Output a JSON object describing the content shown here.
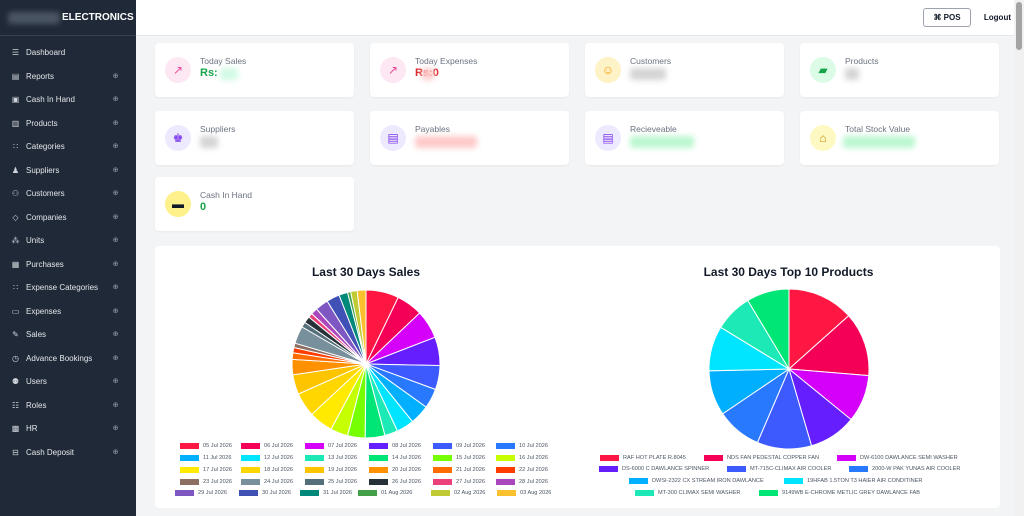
{
  "sidebar": {
    "brand": "ELECTRONICS",
    "items": [
      {
        "label": "Dashboard",
        "icon": "grid-icon",
        "chevron": false
      },
      {
        "label": "Reports",
        "icon": "chart-icon",
        "chevron": true
      },
      {
        "label": "Cash In Hand",
        "icon": "cash-icon",
        "chevron": true
      },
      {
        "label": "Products",
        "icon": "box-icon",
        "chevron": true
      },
      {
        "label": "Categories",
        "icon": "categories-icon",
        "chevron": true
      },
      {
        "label": "Suppliers",
        "icon": "supplier-icon",
        "chevron": true
      },
      {
        "label": "Customers",
        "icon": "users-icon",
        "chevron": true
      },
      {
        "label": "Companies",
        "icon": "tag-icon",
        "chevron": true
      },
      {
        "label": "Units",
        "icon": "units-icon",
        "chevron": true
      },
      {
        "label": "Purchases",
        "icon": "purchase-icon",
        "chevron": true
      },
      {
        "label": "Expense Categories",
        "icon": "categories-icon",
        "chevron": true
      },
      {
        "label": "Expenses",
        "icon": "expense-icon",
        "chevron": true
      },
      {
        "label": "Sales",
        "icon": "sales-icon",
        "chevron": true
      },
      {
        "label": "Advance Bookings",
        "icon": "clock-icon",
        "chevron": true
      },
      {
        "label": "Users",
        "icon": "user-group-icon",
        "chevron": true
      },
      {
        "label": "Roles",
        "icon": "roles-icon",
        "chevron": true
      },
      {
        "label": "HR",
        "icon": "hr-icon",
        "chevron": true
      },
      {
        "label": "Cash Deposit",
        "icon": "deposit-icon",
        "chevron": true
      }
    ]
  },
  "topbar": {
    "pos_label": "⌘ POS",
    "logout_label": "Logout"
  },
  "cards": [
    {
      "title": "Today Sales",
      "value": "Rs:",
      "value_color": "#16a34a",
      "icon": "trend-up-icon",
      "circle_color": "#fce7f3",
      "icon_color": "#ec4899"
    },
    {
      "title": "Today Expenses",
      "value": "Rs:0",
      "value_color": "#dc2626",
      "icon": "trend-up-icon",
      "circle_color": "#fce7f3",
      "icon_color": "#ec4899"
    },
    {
      "title": "Customers",
      "value": "",
      "value_color": "#111827",
      "icon": "customer-icon",
      "circle_color": "#fef3c7",
      "icon_color": "#f59e0b"
    },
    {
      "title": "Products",
      "value": "",
      "value_color": "#111827",
      "icon": "folder-icon",
      "circle_color": "#dcfce7",
      "icon_color": "#16a34a"
    },
    {
      "title": "Suppliers",
      "value": "",
      "value_color": "#111827",
      "icon": "supplier-avatar-icon",
      "circle_color": "#ede9fe",
      "icon_color": "#7c3aed"
    },
    {
      "title": "Payables",
      "value": "",
      "value_color": "#dc2626",
      "icon": "money-icon",
      "circle_color": "#ede9fe",
      "icon_color": "#7c3aed"
    },
    {
      "title": "Recieveable",
      "value": "",
      "value_color": "#16a34a",
      "icon": "money-icon",
      "circle_color": "#ede9fe",
      "icon_color": "#7c3aed"
    },
    {
      "title": "Total Stock Value",
      "value": "",
      "value_color": "#16a34a",
      "icon": "warehouse-icon",
      "circle_color": "#fef9c3",
      "icon_color": "#ca8a04"
    },
    {
      "title": "Cash In Hand",
      "value": "0",
      "value_color": "#16a34a",
      "icon": "cash-hand-icon",
      "circle_color": "#fef08a",
      "icon_color": "#111827"
    }
  ],
  "chart_data": [
    {
      "type": "pie",
      "title": "Last 30 Days Sales",
      "categories": [
        "05 Jul 2026",
        "06 Jul 2026",
        "07 Jul 2026",
        "08 Jul 2026",
        "09 Jul 2026",
        "10 Jul 2026",
        "11 Jul 2026",
        "12 Jul 2026",
        "13 Jul 2026",
        "14 Jul 2026",
        "15 Jul 2026",
        "16 Jul 2026",
        "17 Jul 2026",
        "18 Jul 2026",
        "19 Jul 2026",
        "20 Jul 2026",
        "21 Jul 2026",
        "22 Jul 2026",
        "23 Jul 2026",
        "24 Jul 2026",
        "25 Jul 2026",
        "26 Jul 2026",
        "27 Jul 2026",
        "28 Jul 2026",
        "29 Jul 2026",
        "30 Jul 2026",
        "31 Jul 2026",
        "01 Aug 2026",
        "02 Aug 2026",
        "03 Aug 2026"
      ],
      "values": [
        7.5,
        6,
        6.5,
        6.5,
        5.5,
        4.5,
        4.5,
        4,
        3,
        4.5,
        4,
        4,
        5.5,
        5.5,
        4.5,
        3.5,
        1.5,
        1.2,
        1,
        4,
        1.2,
        1.5,
        1,
        1.5,
        3,
        3,
        2,
        0.7,
        1.5,
        2
      ],
      "colors": [
        "#ff1744",
        "#f50057",
        "#d500f9",
        "#651fff",
        "#3d5afe",
        "#2979ff",
        "#00b0ff",
        "#00e5ff",
        "#1de9b6",
        "#00e676",
        "#76ff03",
        "#c6ff00",
        "#ffea00",
        "#ffd600",
        "#ffc400",
        "#ff9100",
        "#ff6d00",
        "#ff3d00",
        "#8d6e63",
        "#78909c",
        "#546e7a",
        "#263238",
        "#ec407a",
        "#ab47bc",
        "#7e57c2",
        "#3f51b5",
        "#00897b",
        "#43a047",
        "#c0ca33",
        "#fbc02d"
      ],
      "legend_placement": "bottom"
    },
    {
      "type": "pie",
      "title": "Last 30 Days Top 10 Products",
      "categories": [
        "RAF HOT PLATE R.8045",
        "NDS FAN PEDESTAL COPPER FAN",
        "DW-6100 DAWLANCE SEMI WASHER",
        "DS-6000 C DAWLANCE SPINNER",
        "MT-715C-CLIMAX AIR COOLER",
        "2000-W PAK YUNAS AIR COOLER",
        "DWSI-2322 CX STREAM IRON DAWLANCE",
        "19HFAB 1.5TON T3 HAIER AIR CONDITINER",
        "MT-300 CLIMAX SEMI WASHER",
        "9149WB E-CHROME METLIC GREY DAWLANCE FAB"
      ],
      "values": [
        14,
        13.5,
        10,
        10,
        11.5,
        9.5,
        9.5,
        9.5,
        8,
        9
      ],
      "colors": [
        "#ff1744",
        "#f50057",
        "#d500f9",
        "#651fff",
        "#3d5afe",
        "#2979ff",
        "#00b0ff",
        "#00e5ff",
        "#1de9b6",
        "#00e676"
      ],
      "legend_placement": "bottom"
    }
  ]
}
